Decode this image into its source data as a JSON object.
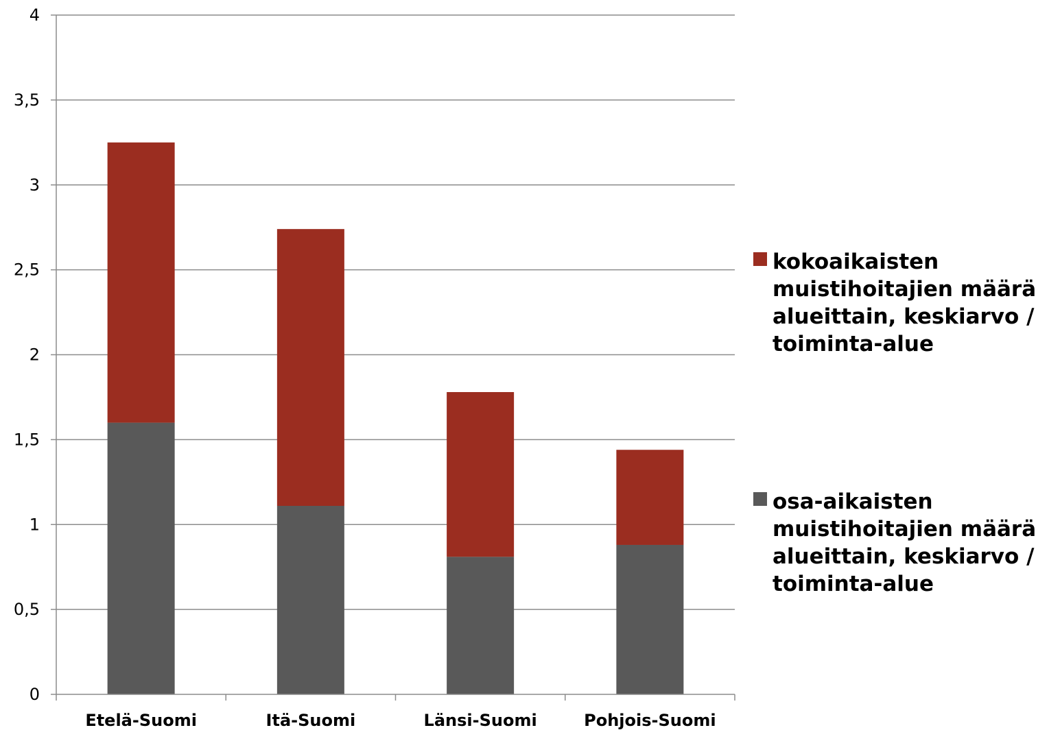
{
  "chart_data": {
    "type": "bar",
    "stacked": true,
    "categories": [
      "Etelä-Suomi",
      "Itä-Suomi",
      "Länsi-Suomi",
      "Pohjois-Suomi"
    ],
    "series": [
      {
        "name": "osa-aikaisten muistihoitajien määrä alueittain, keskiarvo / toiminta-alue",
        "color": "#595959",
        "values": [
          1.6,
          1.11,
          0.81,
          0.88
        ]
      },
      {
        "name": "kokoaikaisten muistihoitajien määrä alueittain, keskiarvo / toiminta-alue",
        "color": "#9b2d20",
        "values": [
          1.65,
          1.63,
          0.97,
          0.56
        ]
      }
    ],
    "y_ticks": [
      "0",
      "0,5",
      "1",
      "1,5",
      "2",
      "2,5",
      "3",
      "3,5",
      "4"
    ],
    "ylim": [
      0,
      4
    ],
    "grid": true,
    "legend_position": "right",
    "title": "",
    "xlabel": "",
    "ylabel": ""
  }
}
